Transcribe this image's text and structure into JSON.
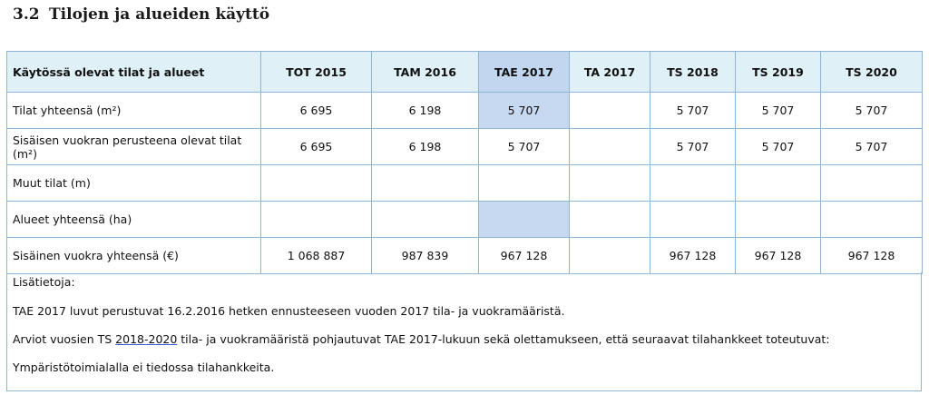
{
  "section": {
    "number": "3.2",
    "title": "Tilojen ja alueiden käyttö"
  },
  "table": {
    "row_header": "Käytössä olevat tilat ja alueet",
    "columns": [
      "TOT 2015",
      "TAM 2016",
      "TAE 2017",
      "TA 2017",
      "TS 2018",
      "TS 2019",
      "TS 2020"
    ],
    "rows": [
      {
        "label": "Tilat yhteensä (m²)",
        "values": [
          "6 695",
          "6 198",
          "5 707",
          "",
          "5 707",
          "5 707",
          "5 707"
        ]
      },
      {
        "label": "Sisäisen vuokran perusteena olevat tilat (m²)",
        "values": [
          "6 695",
          "6 198",
          "5 707",
          "",
          "5 707",
          "5 707",
          "5 707"
        ]
      },
      {
        "label": "Muut tilat (m)",
        "values": [
          "",
          "",
          "",
          "",
          "",
          "",
          ""
        ]
      },
      {
        "label": "Alueet yhteensä (ha)",
        "values": [
          "",
          "",
          "",
          "",
          "",
          "",
          ""
        ]
      },
      {
        "label": "Sisäinen vuokra yhteensä (€)",
        "values": [
          "1 068 887",
          "987 839",
          "967 128",
          "",
          "967 128",
          "967 128",
          "967 128"
        ]
      }
    ]
  },
  "notes": {
    "heading": "Lisätietoja:",
    "line1": "TAE 2017 luvut perustuvat 16.2.2016 hetken ennusteeseen vuoden 2017 tila- ja vuokramääristä.",
    "line2_pre": "Arviot vuosien TS ",
    "line2_link": "2018-2020",
    "line2_post": " tila- ja vuokramääristä pohjautuvat TAE 2017-lukuun sekä olettamukseen, että seuraavat tilahankkeet toteutuvat:",
    "line3": "Ympäristötoimialalla ei tiedossa tilahankkeita."
  }
}
